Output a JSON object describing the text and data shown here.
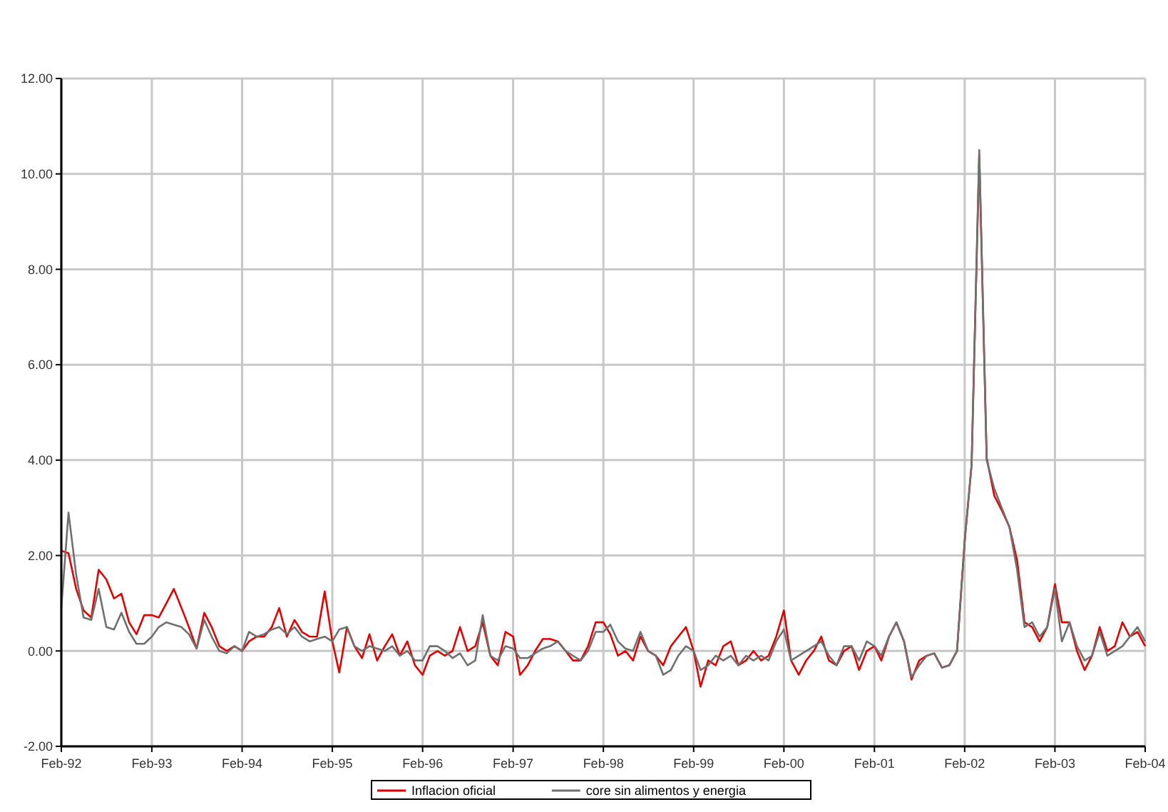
{
  "chart_data": {
    "type": "line",
    "x": [
      "1992-02",
      "1992-03",
      "1992-04",
      "1992-05",
      "1992-06",
      "1992-07",
      "1992-08",
      "1992-09",
      "1992-10",
      "1992-11",
      "1992-12",
      "1993-01",
      "1993-02",
      "1993-03",
      "1993-04",
      "1993-05",
      "1993-06",
      "1993-07",
      "1993-08",
      "1993-09",
      "1993-10",
      "1993-11",
      "1993-12",
      "1994-01",
      "1994-02",
      "1994-03",
      "1994-04",
      "1994-05",
      "1994-06",
      "1994-07",
      "1994-08",
      "1994-09",
      "1994-10",
      "1994-11",
      "1994-12",
      "1995-01",
      "1995-02",
      "1995-03",
      "1995-04",
      "1995-05",
      "1995-06",
      "1995-07",
      "1995-08",
      "1995-09",
      "1995-10",
      "1995-11",
      "1995-12",
      "1996-01",
      "1996-02",
      "1996-03",
      "1996-04",
      "1996-05",
      "1996-06",
      "1996-07",
      "1996-08",
      "1996-09",
      "1996-10",
      "1996-11",
      "1996-12",
      "1997-01",
      "1997-02",
      "1997-03",
      "1997-04",
      "1997-05",
      "1997-06",
      "1997-07",
      "1997-08",
      "1997-09",
      "1997-10",
      "1997-11",
      "1997-12",
      "1998-01",
      "1998-02",
      "1998-03",
      "1998-04",
      "1998-05",
      "1998-06",
      "1998-07",
      "1998-08",
      "1998-09",
      "1998-10",
      "1998-11",
      "1998-12",
      "1999-01",
      "1999-02",
      "1999-03",
      "1999-04",
      "1999-05",
      "1999-06",
      "1999-07",
      "1999-08",
      "1999-09",
      "1999-10",
      "1999-11",
      "1999-12",
      "2000-01",
      "2000-02",
      "2000-03",
      "2000-04",
      "2000-05",
      "2000-06",
      "2000-07",
      "2000-08",
      "2000-09",
      "2000-10",
      "2000-11",
      "2000-12",
      "2001-01",
      "2001-02",
      "2001-03",
      "2001-04",
      "2001-05",
      "2001-06",
      "2001-07",
      "2001-08",
      "2001-09",
      "2001-10",
      "2001-11",
      "2001-12",
      "2002-01",
      "2002-02",
      "2002-03",
      "2002-04",
      "2002-05",
      "2002-06",
      "2002-07",
      "2002-08",
      "2002-09",
      "2002-10",
      "2002-11",
      "2002-12",
      "2003-01",
      "2003-02",
      "2003-03",
      "2003-04",
      "2003-05",
      "2003-06",
      "2003-07",
      "2003-08",
      "2003-09",
      "2003-10",
      "2003-11",
      "2003-12",
      "2004-01",
      "2004-02"
    ],
    "series": [
      {
        "name": "Inflacion oficial",
        "color": "#e00000",
        "values": [
          2.1,
          2.05,
          1.3,
          0.85,
          0.7,
          1.7,
          1.5,
          1.1,
          1.2,
          0.6,
          0.35,
          0.75,
          0.75,
          0.7,
          1.0,
          1.3,
          0.9,
          0.5,
          0.05,
          0.8,
          0.5,
          0.1,
          0.0,
          0.1,
          0.0,
          0.2,
          0.3,
          0.3,
          0.5,
          0.9,
          0.3,
          0.65,
          0.4,
          0.3,
          0.3,
          1.25,
          0.2,
          -0.45,
          0.5,
          0.1,
          -0.15,
          0.35,
          -0.2,
          0.1,
          0.35,
          -0.1,
          0.2,
          -0.3,
          -0.5,
          -0.1,
          0.0,
          -0.1,
          0.0,
          0.5,
          0.0,
          0.1,
          0.6,
          -0.1,
          -0.3,
          0.4,
          0.3,
          -0.5,
          -0.3,
          0.0,
          0.25,
          0.25,
          0.2,
          0.0,
          -0.2,
          -0.2,
          0.1,
          0.6,
          0.6,
          0.35,
          -0.1,
          0.0,
          -0.2,
          0.3,
          0.0,
          -0.1,
          -0.3,
          0.1,
          0.3,
          0.5,
          0.0,
          -0.75,
          -0.2,
          -0.3,
          0.1,
          0.2,
          -0.3,
          -0.2,
          0.0,
          -0.2,
          -0.1,
          0.3,
          0.85,
          -0.2,
          -0.5,
          -0.2,
          0.0,
          0.3,
          -0.2,
          -0.3,
          0.0,
          0.1,
          -0.4,
          0.0,
          0.1,
          -0.2,
          0.3,
          0.6,
          0.2,
          -0.6,
          -0.2,
          -0.1,
          -0.05,
          -0.35,
          -0.3,
          0.0,
          2.3,
          3.9,
          10.4,
          4.05,
          3.25,
          2.95,
          2.6,
          1.9,
          0.6,
          0.5,
          0.2,
          0.5,
          1.4,
          0.6,
          0.6,
          0.0,
          -0.4,
          -0.1,
          0.5,
          0.0,
          0.1,
          0.6,
          0.3,
          0.4,
          0.1
        ]
      },
      {
        "name": "core sin alimentos y energia",
        "color": "#707070",
        "values": [
          0.9,
          2.9,
          1.6,
          0.7,
          0.65,
          1.3,
          0.5,
          0.45,
          0.8,
          0.4,
          0.15,
          0.15,
          0.3,
          0.5,
          0.6,
          0.55,
          0.5,
          0.35,
          0.05,
          0.65,
          0.3,
          0.0,
          -0.05,
          0.1,
          0.0,
          0.4,
          0.3,
          0.35,
          0.45,
          0.5,
          0.35,
          0.5,
          0.3,
          0.2,
          0.25,
          0.3,
          0.2,
          0.45,
          0.5,
          0.1,
          0.0,
          0.1,
          0.05,
          0.0,
          0.1,
          -0.1,
          0.0,
          -0.2,
          -0.2,
          0.1,
          0.1,
          0.0,
          -0.15,
          -0.05,
          -0.3,
          -0.2,
          0.75,
          -0.1,
          -0.2,
          0.1,
          0.05,
          -0.15,
          -0.15,
          -0.05,
          0.05,
          0.1,
          0.2,
          0.0,
          -0.1,
          -0.2,
          0.0,
          0.4,
          0.4,
          0.55,
          0.2,
          0.05,
          0.0,
          0.4,
          0.0,
          -0.1,
          -0.5,
          -0.4,
          -0.1,
          0.1,
          0.0,
          -0.4,
          -0.3,
          -0.1,
          -0.2,
          -0.1,
          -0.3,
          -0.1,
          -0.2,
          -0.1,
          -0.2,
          0.2,
          0.45,
          -0.2,
          -0.1,
          0.0,
          0.1,
          0.2,
          -0.1,
          -0.3,
          0.1,
          0.1,
          -0.2,
          0.2,
          0.1,
          -0.1,
          0.3,
          0.6,
          0.2,
          -0.55,
          -0.3,
          -0.1,
          -0.05,
          -0.35,
          -0.3,
          0.0,
          2.3,
          3.9,
          10.5,
          4.0,
          3.4,
          3.0,
          2.6,
          1.7,
          0.5,
          0.6,
          0.3,
          0.5,
          1.3,
          0.2,
          0.6,
          0.1,
          -0.2,
          -0.1,
          0.4,
          -0.1,
          0.0,
          0.1,
          0.3,
          0.5,
          0.2
        ]
      }
    ],
    "xlim": [
      "1992-02",
      "2004-02"
    ],
    "xticks": [
      {
        "value": "1992-02",
        "label": "Feb-92"
      },
      {
        "value": "1993-02",
        "label": "Feb-93"
      },
      {
        "value": "1994-02",
        "label": "Feb-94"
      },
      {
        "value": "1995-02",
        "label": "Feb-95"
      },
      {
        "value": "1996-02",
        "label": "Feb-96"
      },
      {
        "value": "1997-02",
        "label": "Feb-97"
      },
      {
        "value": "1998-02",
        "label": "Feb-98"
      },
      {
        "value": "1999-02",
        "label": "Feb-99"
      },
      {
        "value": "2000-02",
        "label": "Feb-00"
      },
      {
        "value": "2001-02",
        "label": "Feb-01"
      },
      {
        "value": "2002-02",
        "label": "Feb-02"
      },
      {
        "value": "2003-02",
        "label": "Feb-03"
      },
      {
        "value": "2004-02",
        "label": "Feb-04"
      }
    ],
    "ylim": [
      -2,
      12
    ],
    "yticks": [
      {
        "value": -2,
        "label": "-2.00"
      },
      {
        "value": 0,
        "label": "0.00"
      },
      {
        "value": 2,
        "label": "2.00"
      },
      {
        "value": 4,
        "label": "4.00"
      },
      {
        "value": 6,
        "label": "6.00"
      },
      {
        "value": 8,
        "label": "8.00"
      },
      {
        "value": 10,
        "label": "10.00"
      },
      {
        "value": 12,
        "label": "12.00"
      }
    ],
    "grid": true,
    "legend": "bottom",
    "marker": "none",
    "line_style": "solid"
  }
}
